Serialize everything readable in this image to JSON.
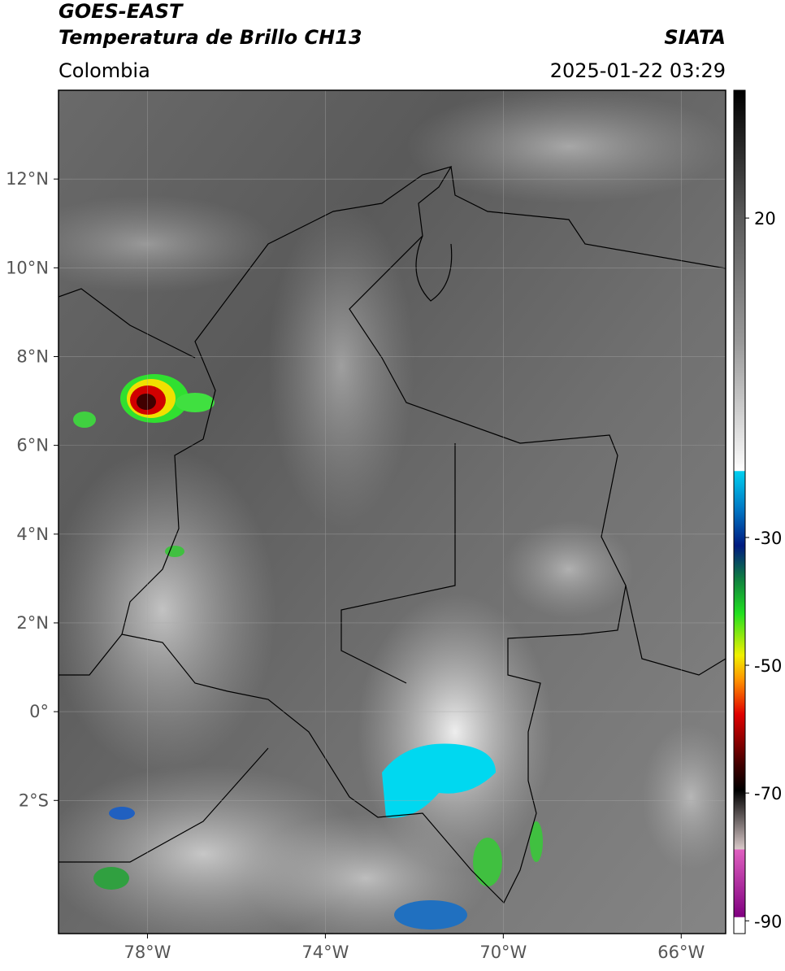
{
  "header": {
    "title": "GOES-EAST",
    "subtitle": "Temperatura de Brillo CH13",
    "region": "Colombia",
    "source": "SIATA",
    "datetime": "2025-01-22 03:29"
  },
  "map": {
    "latlim": [
      -5,
      14
    ],
    "lonlim": [
      -80,
      -65
    ],
    "lat_ticks": [
      {
        "value": 12,
        "label": "12°N"
      },
      {
        "value": 10,
        "label": "10°N"
      },
      {
        "value": 8,
        "label": "8°N"
      },
      {
        "value": 6,
        "label": "6°N"
      },
      {
        "value": 4,
        "label": "4°N"
      },
      {
        "value": 2,
        "label": "2°N"
      },
      {
        "value": 0,
        "label": "0°"
      },
      {
        "value": -2,
        "label": "2°S"
      }
    ],
    "lon_ticks": [
      {
        "value": -78,
        "label": "78°W"
      },
      {
        "value": -74,
        "label": "74°W"
      },
      {
        "value": -70,
        "label": "70°W"
      },
      {
        "value": -66,
        "label": "66°W"
      }
    ]
  },
  "colorbar": {
    "range": [
      -92,
      40
    ],
    "ticks": [
      20,
      -30,
      -50,
      -70,
      -90
    ]
  }
}
